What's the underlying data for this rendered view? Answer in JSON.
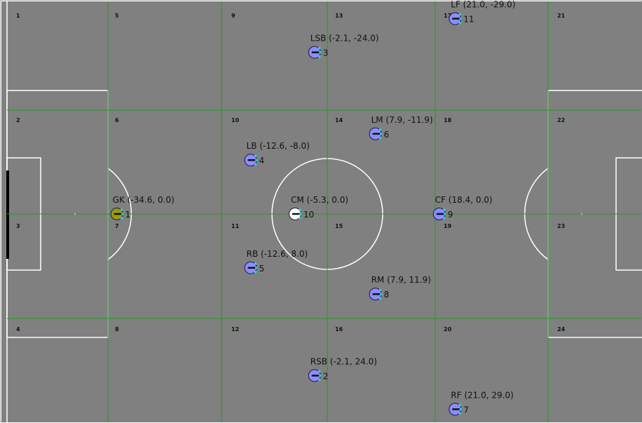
{
  "colors": {
    "pitch": "#808080",
    "grid_line": "#1f9d1f",
    "field_line": "#ffffff",
    "goal": "#000000",
    "player_body": "#8c8cff",
    "goalkeeper_body": "#9a9a10",
    "ball_holder_body": "#ffffff",
    "player_outline": "#1a1a4a",
    "direction_marker": "#111111",
    "sensor_dot": "#2fd6e0"
  },
  "zones": [
    "1",
    "2",
    "3",
    "4",
    "5",
    "6",
    "7",
    "8",
    "9",
    "10",
    "11",
    "12",
    "13",
    "14",
    "15",
    "16",
    "17",
    "18",
    "19",
    "20",
    "21",
    "22",
    "23",
    "24"
  ],
  "players": [
    {
      "role": "GK",
      "x": -34.6,
      "y": 0.0,
      "number": "1",
      "label": "GK (-34.6, 0.0)",
      "kind": "goalkeeper"
    },
    {
      "role": "RSB",
      "x": -2.1,
      "y": 24.0,
      "number": "2",
      "label": "RSB (-2.1, 24.0)",
      "kind": "field"
    },
    {
      "role": "LSB",
      "x": -2.1,
      "y": -24.0,
      "number": "3",
      "label": "LSB (-2.1, -24.0)",
      "kind": "field"
    },
    {
      "role": "LB",
      "x": -12.6,
      "y": -8.0,
      "number": "4",
      "label": "LB (-12.6, -8.0)",
      "kind": "field"
    },
    {
      "role": "RB",
      "x": -12.6,
      "y": 8.0,
      "number": "5",
      "label": "RB (-12.6, 8.0)",
      "kind": "field"
    },
    {
      "role": "LM",
      "x": 7.9,
      "y": -11.9,
      "number": "6",
      "label": "LM (7.9, -11.9)",
      "kind": "field"
    },
    {
      "role": "RF",
      "x": 21.0,
      "y": 29.0,
      "number": "7",
      "label": "RF (21.0, 29.0)",
      "kind": "field"
    },
    {
      "role": "RM",
      "x": 7.9,
      "y": 11.9,
      "number": "8",
      "label": "RM (7.9, 11.9)",
      "kind": "field"
    },
    {
      "role": "CF",
      "x": 18.4,
      "y": 0.0,
      "number": "9",
      "label": "CF (18.4, 0.0)",
      "kind": "field"
    },
    {
      "role": "CM",
      "x": -5.3,
      "y": 0.0,
      "number": "10",
      "label": "CM (-5.3, 0.0)",
      "kind": "selected"
    },
    {
      "role": "LF",
      "x": 21.0,
      "y": -29.0,
      "number": "11",
      "label": "LF (21.0, -29.0)",
      "kind": "field"
    }
  ]
}
